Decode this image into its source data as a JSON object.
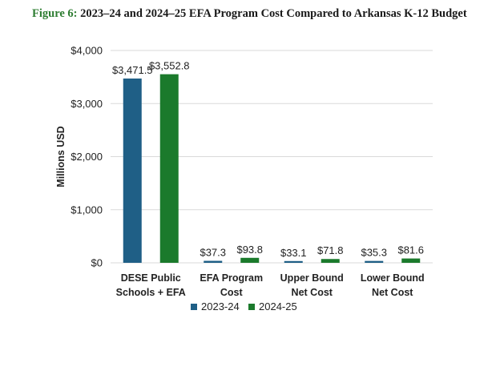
{
  "figure": {
    "label": "Figure 6:",
    "title": "2023–24 and 2024–25 EFA Program Cost Compared to Arkansas K-12 Budget"
  },
  "colors": {
    "series_2023": "#1f5f86",
    "series_2024": "#1b7a2c",
    "grid": "#d9d9d9"
  },
  "chart_data": {
    "type": "bar",
    "title": "2023–24 and 2024–25 EFA Program Cost Compared to Arkansas K-12 Budget",
    "xlabel": "",
    "ylabel": "Millions USD",
    "ylim": [
      0,
      4000
    ],
    "yticks": [
      0,
      1000,
      2000,
      3000,
      4000
    ],
    "ytick_labels": [
      "$0",
      "$1,000",
      "$2,000",
      "$3,000",
      "$4,000"
    ],
    "grid": true,
    "legend_position": "bottom",
    "categories": [
      [
        "DESE Public",
        "Schools + EFA"
      ],
      [
        "EFA Program",
        "Cost"
      ],
      [
        "Upper Bound",
        "Net Cost"
      ],
      [
        "Lower Bound",
        "Net Cost"
      ]
    ],
    "series": [
      {
        "name": "2023-24",
        "values": [
          3471.5,
          37.3,
          33.1,
          35.3
        ],
        "labels": [
          "$3,471.5",
          "$37.3",
          "$33.1",
          "$35.3"
        ]
      },
      {
        "name": "2024-25",
        "values": [
          3552.8,
          93.8,
          71.8,
          81.6
        ],
        "labels": [
          "$3,552.8",
          "$93.8",
          "$71.8",
          "$81.6"
        ]
      }
    ]
  }
}
